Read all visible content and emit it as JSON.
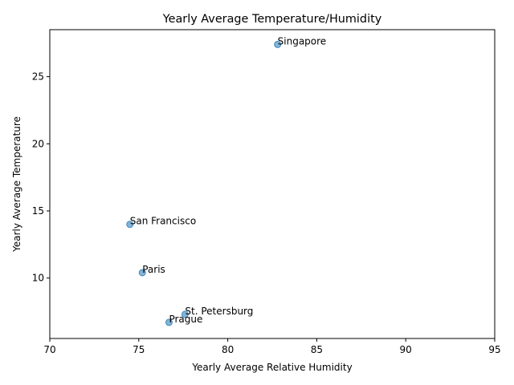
{
  "chart_data": {
    "type": "scatter",
    "title": "Yearly Average Temperature/Humidity",
    "xlabel": "Yearly Average Relative Humidity",
    "ylabel": "Yearly Average Temperature",
    "xlim": [
      70,
      95
    ],
    "ylim": [
      5.5,
      28.5
    ],
    "xticks": [
      70,
      75,
      80,
      85,
      90,
      95
    ],
    "yticks": [
      10,
      15,
      20,
      25
    ],
    "grid": false,
    "point_color": "#1f77b4",
    "points": [
      {
        "label": "Singapore",
        "x": 82.8,
        "y": 27.4
      },
      {
        "label": "San Francisco",
        "x": 74.5,
        "y": 14.0
      },
      {
        "label": "Paris",
        "x": 75.2,
        "y": 10.4
      },
      {
        "label": "St. Petersburg",
        "x": 77.6,
        "y": 7.3
      },
      {
        "label": "Prague",
        "x": 76.7,
        "y": 6.7
      }
    ]
  }
}
